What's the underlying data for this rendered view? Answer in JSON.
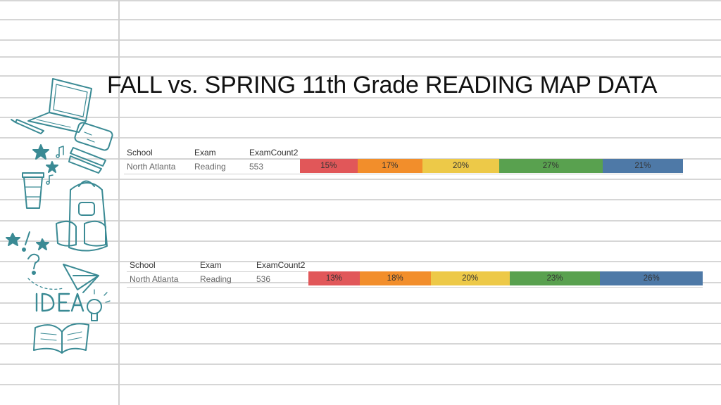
{
  "title": "FALL vs. SPRING 11th Grade READING MAP DATA",
  "chart_data": [
    {
      "type": "bar",
      "stacked": true,
      "orientation": "horizontal",
      "table": {
        "headers": [
          "School",
          "Exam",
          "ExamCount2"
        ],
        "row": [
          "North Atlanta",
          "Reading",
          "553"
        ]
      },
      "series": [
        {
          "value": 15,
          "label": "15%",
          "color": "#e15759"
        },
        {
          "value": 17,
          "label": "17%",
          "color": "#f28e2b"
        },
        {
          "value": 20,
          "label": "20%",
          "color": "#edc948"
        },
        {
          "value": 27,
          "label": "27%",
          "color": "#59a14f"
        },
        {
          "value": 21,
          "label": "21%",
          "color": "#4e79a7"
        }
      ]
    },
    {
      "type": "bar",
      "stacked": true,
      "orientation": "horizontal",
      "table": {
        "headers": [
          "School",
          "Exam",
          "ExamCount2"
        ],
        "row": [
          "North Atlanta",
          "Reading",
          "536"
        ]
      },
      "series": [
        {
          "value": 13,
          "label": "13%",
          "color": "#e15759"
        },
        {
          "value": 18,
          "label": "18%",
          "color": "#f28e2b"
        },
        {
          "value": 20,
          "label": "20%",
          "color": "#edc948"
        },
        {
          "value": 23,
          "label": "23%",
          "color": "#59a14f"
        },
        {
          "value": 26,
          "label": "26%",
          "color": "#4e79a7"
        }
      ]
    }
  ]
}
